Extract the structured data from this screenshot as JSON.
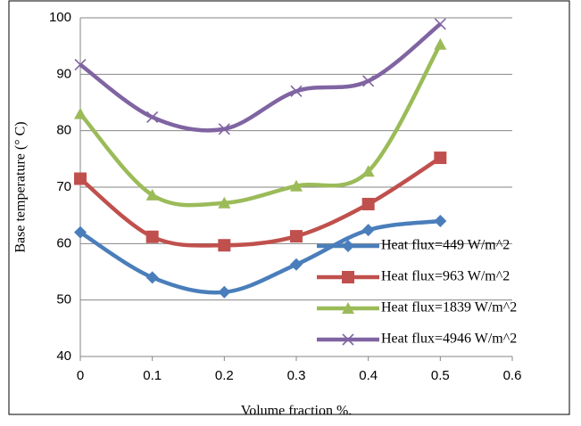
{
  "chart_data": {
    "type": "line",
    "x_label": "Volume fraction  %.",
    "y_label": "Base temperature (° C)",
    "x": [
      0,
      0.1,
      0.2,
      0.3,
      0.4,
      0.5
    ],
    "xlim": [
      0,
      0.6
    ],
    "xticks": [
      0,
      0.1,
      0.2,
      0.3,
      0.4,
      0.5,
      0.6
    ],
    "ylim": [
      40,
      100
    ],
    "yticks": [
      40,
      50,
      60,
      70,
      80,
      90,
      100
    ],
    "grid": true,
    "smooth": true,
    "legend": "right",
    "series": [
      {
        "name": "Heat flux=449 W/m^2",
        "color": "#4a7ebb",
        "marker": "diamond",
        "values": [
          62,
          54,
          51.4,
          56.3,
          62.4,
          64
        ]
      },
      {
        "name": "Heat flux=963 W/m^2",
        "color": "#c0504d",
        "marker": "square",
        "values": [
          71.5,
          61.2,
          59.7,
          61.3,
          67,
          75.2
        ]
      },
      {
        "name": "Heat flux=1839 W/m^2",
        "color": "#9bbb59",
        "marker": "triangle",
        "values": [
          83,
          68.6,
          67.2,
          70.2,
          72.8,
          95.3
        ]
      },
      {
        "name": "Heat flux=4946 W/m^2",
        "color": "#8064a2",
        "marker": "x",
        "values": [
          91.7,
          82.4,
          80.3,
          87,
          88.8,
          98.9
        ]
      }
    ]
  }
}
